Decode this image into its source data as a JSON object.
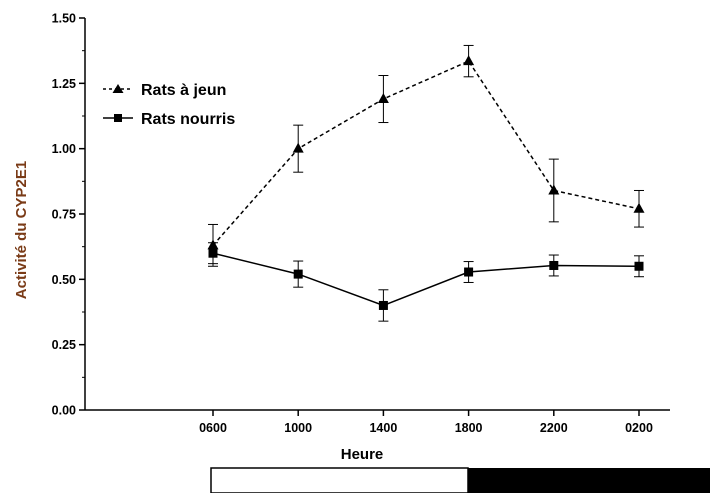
{
  "chart_data": {
    "type": "line",
    "xlabel": "Heure",
    "ylabel": "Activité du CYP2E1",
    "categories": [
      "0600",
      "1000",
      "1400",
      "1800",
      "2200",
      "0200"
    ],
    "ylim": [
      0,
      1.5
    ],
    "yticks": [
      "0.00",
      "0.25",
      "0.50",
      "0.75",
      "1.00",
      "1.25",
      "1.50"
    ],
    "grid": false,
    "legend_position": "top-left",
    "series": [
      {
        "name": "Rats à jeun",
        "marker": "triangle",
        "line_style": "dashed",
        "values": [
          0.63,
          1.0,
          1.19,
          1.335,
          0.84,
          0.77
        ],
        "errors": [
          0.08,
          0.09,
          0.09,
          0.06,
          0.12,
          0.07
        ]
      },
      {
        "name": "Rats nourris",
        "marker": "square",
        "line_style": "solid",
        "values": [
          0.6,
          0.52,
          0.4,
          0.528,
          0.553,
          0.55
        ],
        "errors": [
          0.04,
          0.05,
          0.06,
          0.04,
          0.04,
          0.04
        ]
      }
    ],
    "light_dark_bar": [
      "light",
      "dark"
    ]
  },
  "colors": {
    "axis": "#000000",
    "ylabel": "#7a3b17",
    "series": "#000000",
    "dark_phase": "#000000",
    "light_phase": "#ffffff"
  }
}
